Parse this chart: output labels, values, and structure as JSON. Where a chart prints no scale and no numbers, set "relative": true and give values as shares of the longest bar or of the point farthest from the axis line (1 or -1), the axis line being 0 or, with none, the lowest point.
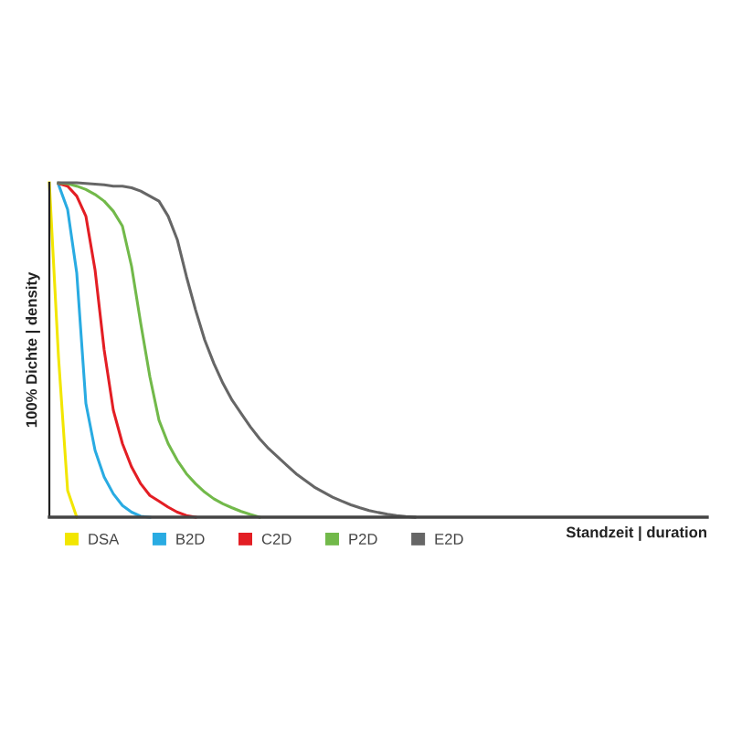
{
  "chart_data": {
    "type": "line",
    "relative": true,
    "xlabel": "Standzeit | duration",
    "ylabel": "100% Dichte | density",
    "legend": "bottom",
    "categories": [
      null,
      null,
      null,
      null,
      null,
      null,
      null,
      null,
      null,
      null,
      null,
      null,
      null,
      null,
      null,
      null,
      null,
      null,
      null,
      null,
      null,
      null,
      null,
      null,
      null,
      null,
      null,
      null,
      null,
      null,
      null,
      null,
      null,
      null,
      null,
      null,
      null,
      null,
      null,
      null,
      null,
      null,
      null,
      null,
      null,
      null,
      null,
      null,
      null,
      null,
      null,
      null,
      null,
      null,
      null,
      null,
      null,
      null,
      null,
      null,
      null,
      null,
      null,
      null,
      null,
      null,
      null,
      null,
      null,
      null,
      null,
      null,
      null
    ],
    "series": [
      {
        "name": "DSA",
        "color": "#f2e600",
        "values": [
          1,
          0.48,
          0.08,
          0,
          null,
          null,
          null,
          null,
          null,
          null,
          null,
          null,
          null,
          null,
          null,
          null,
          null,
          null,
          null,
          null,
          null,
          null,
          null,
          null,
          null,
          null,
          null,
          null,
          null,
          null,
          null,
          null,
          null,
          null,
          null,
          null,
          null,
          null,
          null,
          null,
          null,
          null,
          null,
          null,
          null,
          null,
          null,
          null,
          null,
          null,
          null,
          null,
          null,
          null,
          null,
          null,
          null,
          null,
          null,
          null,
          null,
          null,
          null,
          null,
          null,
          null,
          null,
          null,
          null,
          null,
          null,
          null,
          null
        ]
      },
      {
        "name": "B2D",
        "color": "#29abe2",
        "values": [
          null,
          0.995,
          0.92,
          0.73,
          0.34,
          0.2,
          0.12,
          0.07,
          0.035,
          0.015,
          0.003,
          0,
          null,
          null,
          null,
          null,
          null,
          null,
          null,
          null,
          null,
          null,
          null,
          null,
          null,
          null,
          null,
          null,
          null,
          null,
          null,
          null,
          null,
          null,
          null,
          null,
          null,
          null,
          null,
          null,
          null,
          null,
          null,
          null,
          null,
          null,
          null,
          null,
          null,
          null,
          null,
          null,
          null,
          null,
          null,
          null,
          null,
          null,
          null,
          null,
          null,
          null,
          null,
          null,
          null,
          null,
          null,
          null,
          null,
          null,
          null,
          null,
          null
        ]
      },
      {
        "name": "C2D",
        "color": "#e31e24",
        "values": [
          null,
          0.998,
          0.99,
          0.96,
          0.9,
          0.74,
          0.5,
          0.32,
          0.22,
          0.15,
          0.1,
          0.065,
          0.048,
          0.03,
          0.015,
          0.005,
          0,
          null,
          null,
          null,
          null,
          null,
          null,
          null,
          null,
          null,
          null,
          null,
          null,
          null,
          null,
          null,
          null,
          null,
          null,
          null,
          null,
          null,
          null,
          null,
          null,
          null,
          null,
          null,
          null,
          null,
          null,
          null,
          null,
          null,
          null,
          null,
          null,
          null,
          null,
          null,
          null,
          null,
          null,
          null,
          null,
          null,
          null,
          null,
          null,
          null,
          null,
          null,
          null,
          null,
          null,
          null,
          null
        ]
      },
      {
        "name": "P2D",
        "color": "#72b94a",
        "values": [
          null,
          0.999,
          0.997,
          0.99,
          0.98,
          0.965,
          0.945,
          0.915,
          0.87,
          0.75,
          0.58,
          0.42,
          0.29,
          0.22,
          0.17,
          0.13,
          0.1,
          0.075,
          0.055,
          0.04,
          0.028,
          0.017,
          0.008,
          0,
          null,
          null,
          null,
          null,
          null,
          null,
          null,
          null,
          null,
          null,
          null,
          null,
          null,
          null,
          null,
          null,
          null,
          null,
          null,
          null,
          null,
          null,
          null,
          null,
          null,
          null,
          null,
          null,
          null,
          null,
          null,
          null,
          null,
          null,
          null,
          null,
          null,
          null,
          null,
          null,
          null,
          null,
          null,
          null,
          null,
          null,
          null,
          null,
          null
        ]
      },
      {
        "name": "E2D",
        "color": "#666666",
        "values": [
          null,
          1,
          1,
          1,
          0.998,
          0.996,
          0.994,
          0.99,
          0.99,
          0.985,
          0.975,
          0.96,
          0.945,
          0.9,
          0.83,
          0.72,
          0.62,
          0.53,
          0.46,
          0.4,
          0.35,
          0.31,
          0.27,
          0.235,
          0.205,
          0.18,
          0.155,
          0.13,
          0.11,
          0.09,
          0.075,
          0.06,
          0.048,
          0.037,
          0.028,
          0.02,
          0.014,
          0.009,
          0.005,
          0.002,
          0,
          null,
          null,
          null,
          null,
          null,
          null,
          null,
          null,
          null,
          null,
          null,
          null,
          null,
          null,
          null,
          null,
          null,
          null,
          null,
          null,
          null,
          null,
          null,
          null,
          null,
          null,
          null,
          null,
          null,
          null,
          null,
          null
        ]
      }
    ]
  }
}
